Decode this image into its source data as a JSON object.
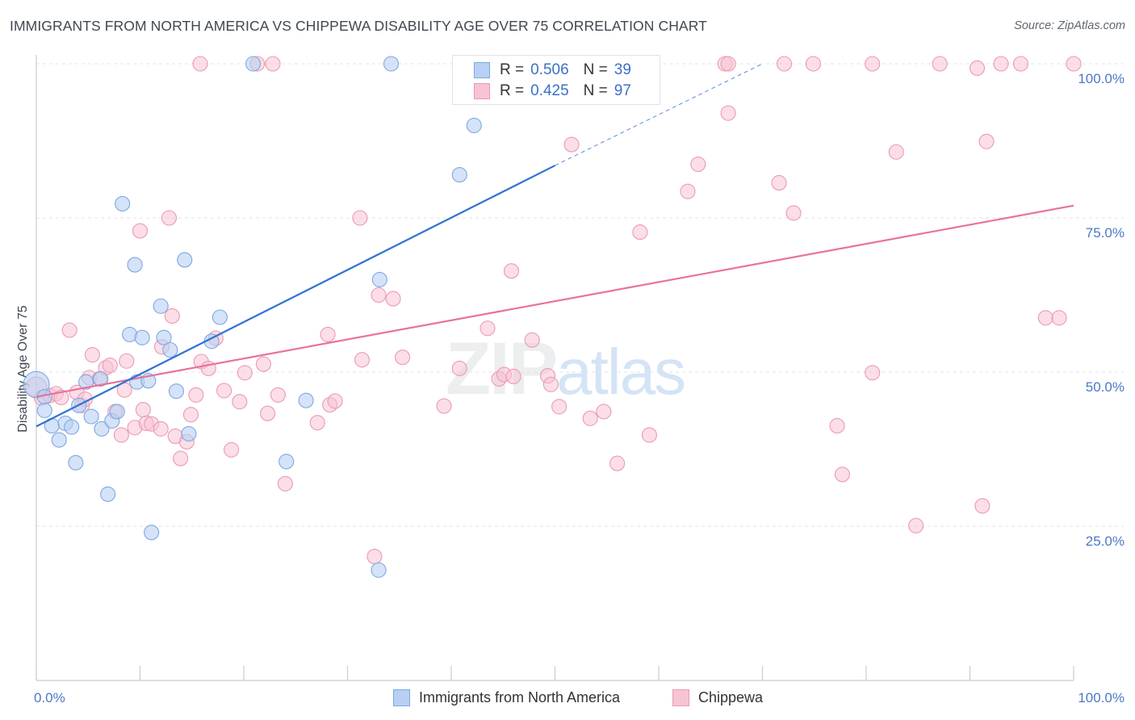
{
  "header": {
    "title": "IMMIGRANTS FROM NORTH AMERICA VS CHIPPEWA DISABILITY AGE OVER 75 CORRELATION CHART",
    "source": "Source: ZipAtlas.com"
  },
  "watermark": {
    "zip": "ZIP",
    "atlas": "atlas"
  },
  "legend": {
    "series1": {
      "r_label": "R =",
      "r_value": "0.506",
      "n_label": "N =",
      "n_value": "39"
    },
    "series2": {
      "r_label": "R =",
      "r_value": "0.425",
      "n_label": "N =",
      "n_value": "97"
    }
  },
  "bottom_legend": {
    "series1_label": "Immigrants from North America",
    "series2_label": "Chippewa"
  },
  "colors": {
    "blue_fill": "#b7d0f3",
    "blue_stroke": "#7ea7e0",
    "blue_line": "#2f72d6",
    "pink_fill": "#f8c3d3",
    "pink_stroke": "#eb9ab3",
    "pink_line": "#e8729a",
    "grid": "#dfe3e8",
    "tick_text": "#4a78c8"
  },
  "chart_data": {
    "type": "scatter",
    "title": "IMMIGRANTS FROM NORTH AMERICA VS CHIPPEWA DISABILITY AGE OVER 75 CORRELATION CHART",
    "xlabel": "",
    "ylabel": "Disability Age Over 75",
    "xlim": [
      0,
      100
    ],
    "ylim": [
      0,
      100
    ],
    "x_tick_labels": [
      "0.0%",
      "100.0%"
    ],
    "y_ticks": [
      25,
      50,
      75,
      100
    ],
    "y_tick_labels": [
      "25.0%",
      "50.0%",
      "75.0%",
      "100.0%"
    ],
    "grid": true,
    "series": [
      {
        "name": "Immigrants from North America",
        "r": 0.506,
        "n": 39,
        "trend": {
          "x0": 0,
          "y0": 41.2,
          "x1": 50,
          "y1": 83.5,
          "dash_to_x": 70,
          "dash_to_y": 100
        },
        "points": [
          [
            0.0,
            48.0,
            16
          ],
          [
            0.8,
            46.0,
            9
          ],
          [
            0.8,
            43.8,
            9
          ],
          [
            1.5,
            41.3,
            9
          ],
          [
            2.2,
            39.0,
            9
          ],
          [
            2.8,
            41.7,
            9
          ],
          [
            3.4,
            41.1,
            9
          ],
          [
            3.8,
            35.3,
            9
          ],
          [
            4.1,
            44.6,
            9
          ],
          [
            5.3,
            42.8,
            9
          ],
          [
            4.8,
            48.4,
            9
          ],
          [
            6.2,
            48.9,
            9
          ],
          [
            6.3,
            40.8,
            9
          ],
          [
            7.3,
            42.1,
            9
          ],
          [
            7.8,
            43.6,
            9
          ],
          [
            6.9,
            30.2,
            9
          ],
          [
            8.3,
            77.3,
            9
          ],
          [
            9.0,
            56.1,
            9
          ],
          [
            9.5,
            67.4,
            9
          ],
          [
            9.7,
            48.4,
            9
          ],
          [
            10.2,
            55.6,
            9
          ],
          [
            10.8,
            48.6,
            9
          ],
          [
            11.1,
            24.0,
            9
          ],
          [
            12.0,
            60.7,
            9
          ],
          [
            12.3,
            55.6,
            9
          ],
          [
            12.9,
            53.6,
            9
          ],
          [
            13.5,
            46.9,
            9
          ],
          [
            14.3,
            68.2,
            9
          ],
          [
            14.7,
            40.0,
            9
          ],
          [
            16.9,
            55.0,
            9
          ],
          [
            17.7,
            58.9,
            9
          ],
          [
            20.9,
            100.0,
            9
          ],
          [
            24.1,
            35.5,
            9
          ],
          [
            26.0,
            45.4,
            9
          ],
          [
            33.0,
            17.9,
            9
          ],
          [
            33.1,
            65.0,
            9
          ],
          [
            34.2,
            100.0,
            9
          ],
          [
            40.8,
            82.0,
            9
          ],
          [
            42.2,
            90.0,
            9
          ]
        ]
      },
      {
        "name": "Chippewa",
        "r": 0.425,
        "n": 97,
        "trend": {
          "x0": 0,
          "y0": 46.0,
          "x1": 100,
          "y1": 77.0
        },
        "points": [
          [
            0.0,
            47.5,
            13
          ],
          [
            0.5,
            45.8,
            9
          ],
          [
            1.3,
            46.2,
            9
          ],
          [
            1.9,
            46.5,
            9
          ],
          [
            2.4,
            45.9,
            9
          ],
          [
            3.2,
            56.8,
            9
          ],
          [
            3.9,
            46.7,
            9
          ],
          [
            4.4,
            44.6,
            9
          ],
          [
            4.7,
            45.6,
            9
          ],
          [
            5.1,
            49.1,
            9
          ],
          [
            5.4,
            52.8,
            9
          ],
          [
            6.1,
            48.9,
            9
          ],
          [
            6.7,
            50.7,
            9
          ],
          [
            7.1,
            51.1,
            9
          ],
          [
            7.6,
            43.6,
            9
          ],
          [
            8.2,
            39.8,
            9
          ],
          [
            8.5,
            47.1,
            9
          ],
          [
            8.7,
            51.8,
            9
          ],
          [
            9.5,
            41.0,
            9
          ],
          [
            10.0,
            72.9,
            9
          ],
          [
            10.3,
            43.9,
            9
          ],
          [
            10.6,
            41.7,
            9
          ],
          [
            11.1,
            41.6,
            9
          ],
          [
            12.0,
            40.8,
            9
          ],
          [
            12.1,
            54.1,
            9
          ],
          [
            12.8,
            75.0,
            9
          ],
          [
            13.1,
            59.1,
            9
          ],
          [
            13.4,
            39.6,
            9
          ],
          [
            13.9,
            36.0,
            9
          ],
          [
            14.5,
            38.7,
            9
          ],
          [
            14.9,
            43.1,
            9
          ],
          [
            15.4,
            46.3,
            9
          ],
          [
            15.8,
            100.0,
            9
          ],
          [
            15.9,
            51.7,
            9
          ],
          [
            16.6,
            50.6,
            9
          ],
          [
            17.3,
            55.5,
            9
          ],
          [
            18.1,
            47.0,
            9
          ],
          [
            18.8,
            37.4,
            9
          ],
          [
            19.6,
            45.2,
            9
          ],
          [
            20.1,
            49.9,
            9
          ],
          [
            21.3,
            100.0,
            9
          ],
          [
            21.9,
            51.3,
            9
          ],
          [
            22.3,
            43.3,
            9
          ],
          [
            22.8,
            100.0,
            9
          ],
          [
            23.3,
            46.3,
            9
          ],
          [
            24.0,
            31.9,
            9
          ],
          [
            27.1,
            41.8,
            9
          ],
          [
            28.1,
            56.1,
            9
          ],
          [
            28.3,
            44.7,
            9
          ],
          [
            28.8,
            45.3,
            9
          ],
          [
            31.2,
            75.0,
            9
          ],
          [
            31.4,
            52.0,
            9
          ],
          [
            32.6,
            20.1,
            9
          ],
          [
            33.0,
            62.5,
            9
          ],
          [
            34.4,
            61.9,
            9
          ],
          [
            35.3,
            52.4,
            9
          ],
          [
            39.3,
            44.5,
            9
          ],
          [
            40.8,
            50.6,
            9
          ],
          [
            43.5,
            57.1,
            9
          ],
          [
            44.6,
            48.9,
            9
          ],
          [
            45.1,
            49.6,
            9
          ],
          [
            45.8,
            66.4,
            9
          ],
          [
            46.0,
            49.3,
            9
          ],
          [
            47.8,
            55.2,
            9
          ],
          [
            49.3,
            49.4,
            9
          ],
          [
            49.6,
            48.0,
            9
          ],
          [
            50.4,
            44.4,
            9
          ],
          [
            51.6,
            86.9,
            9
          ],
          [
            53.4,
            42.5,
            9
          ],
          [
            54.7,
            43.6,
            9
          ],
          [
            56.0,
            35.2,
            9
          ],
          [
            58.2,
            72.7,
            9
          ],
          [
            59.1,
            39.8,
            9
          ],
          [
            62.8,
            79.3,
            9
          ],
          [
            63.8,
            83.7,
            9
          ],
          [
            66.4,
            100.0,
            9
          ],
          [
            66.7,
            100.0,
            9
          ],
          [
            66.7,
            92.0,
            9
          ],
          [
            71.6,
            80.7,
            9
          ],
          [
            72.1,
            100.0,
            9
          ],
          [
            73.0,
            75.8,
            9
          ],
          [
            74.9,
            100.0,
            9
          ],
          [
            77.2,
            41.3,
            9
          ],
          [
            77.7,
            33.4,
            9
          ],
          [
            80.6,
            100.0,
            9
          ],
          [
            80.6,
            49.9,
            9
          ],
          [
            82.9,
            85.7,
            9
          ],
          [
            84.8,
            25.1,
            9
          ],
          [
            87.1,
            100.0,
            9
          ],
          [
            90.7,
            99.3,
            9
          ],
          [
            91.2,
            28.3,
            9
          ],
          [
            91.6,
            87.4,
            9
          ],
          [
            93.0,
            100.0,
            9
          ],
          [
            94.9,
            100.0,
            9
          ],
          [
            97.3,
            58.8,
            9
          ],
          [
            98.6,
            58.8,
            9
          ],
          [
            100.0,
            100.0,
            9
          ]
        ]
      }
    ]
  }
}
